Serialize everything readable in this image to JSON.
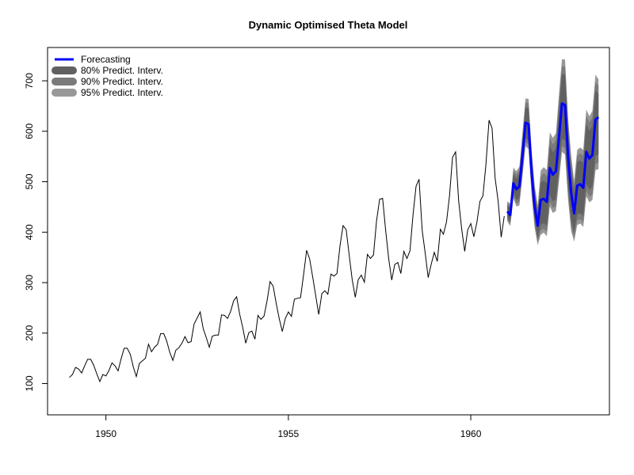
{
  "chart_data": {
    "type": "line",
    "title": "Dynamic Optimised Theta Model",
    "xlabel": "",
    "ylabel": "",
    "xlim": [
      1948.4,
      1963.8
    ],
    "ylim": [
      38,
      766
    ],
    "x_ticks": [
      1950,
      1955,
      1960
    ],
    "y_ticks": [
      100,
      200,
      300,
      400,
      500,
      600,
      700
    ],
    "grid": false,
    "legend_position": "top-left",
    "legend": [
      {
        "label": "Forecasting",
        "kind": "line",
        "color": "#0000ff"
      },
      {
        "label": "80% Predict. Interv.",
        "kind": "band",
        "color": "#616161"
      },
      {
        "label": "90% Predict. Interv.",
        "kind": "band",
        "color": "#7b7b7b"
      },
      {
        "label": "95% Predict. Interv.",
        "kind": "band",
        "color": "#989898"
      }
    ],
    "colors": {
      "history": "#000000",
      "forecast": "#0000ff",
      "band80": "#616161",
      "band90": "#7b7b7b",
      "band95": "#989898"
    },
    "series": [
      {
        "name": "history",
        "start": 1949.0,
        "frequency": 12,
        "values": [
          112,
          118,
          132,
          129,
          121,
          135,
          148,
          148,
          136,
          119,
          104,
          118,
          115,
          126,
          141,
          135,
          125,
          149,
          170,
          170,
          158,
          133,
          114,
          140,
          145,
          150,
          178,
          163,
          172,
          178,
          199,
          199,
          184,
          162,
          146,
          166,
          171,
          180,
          193,
          181,
          183,
          218,
          230,
          242,
          209,
          191,
          172,
          194,
          196,
          196,
          236,
          235,
          229,
          243,
          264,
          272,
          237,
          211,
          180,
          201,
          204,
          188,
          235,
          227,
          234,
          264,
          302,
          293,
          259,
          229,
          203,
          229,
          242,
          233,
          267,
          269,
          270,
          315,
          364,
          347,
          312,
          274,
          237,
          278,
          284,
          277,
          317,
          313,
          318,
          374,
          413,
          405,
          355,
          306,
          271,
          306,
          315,
          301,
          356,
          348,
          355,
          422,
          465,
          467,
          404,
          347,
          305,
          336,
          340,
          318,
          362,
          348,
          363,
          435,
          491,
          505,
          404,
          359,
          310,
          337,
          360,
          342,
          406,
          396,
          420,
          472,
          548,
          559,
          463,
          407,
          362,
          405,
          417,
          391,
          419,
          461,
          472,
          535,
          622,
          606,
          508,
          461,
          390,
          432
        ]
      },
      {
        "name": "Forecasting",
        "start": 1961.0,
        "frequency": 12,
        "values": [
          441,
          434,
          497,
          485,
          491,
          553,
          617,
          614,
          518,
          451,
          413,
          464,
          466,
          460,
          527,
          514,
          521,
          587,
          655,
          652,
          550,
          478,
          437,
          492,
          495,
          488,
          559,
          546,
          553,
          623,
          628
        ]
      },
      {
        "name": "95% Predict. Interv.",
        "start": 1961.0,
        "frequency": 12,
        "lower": [
          422,
          412,
          467,
          451,
          453,
          510,
          570,
          565,
          473,
          409,
          374,
          395,
          399,
          392,
          451,
          438,
          442,
          500,
          559,
          554,
          465,
          402,
          381,
          414,
          417,
          410,
          471,
          459,
          464,
          523,
          525
        ],
        "upper": [
          461,
          457,
          528,
          521,
          530,
          598,
          665,
          664,
          564,
          494,
          453,
          522,
          529,
          523,
          598,
          587,
          596,
          672,
          743,
          742,
          628,
          552,
          502,
          563,
          568,
          563,
          643,
          630,
          640,
          712,
          703
        ]
      },
      {
        "name": "90% Predict. Interv.",
        "start": 1961.0,
        "frequency": 12,
        "lower": [
          425,
          416,
          472,
          457,
          460,
          517,
          578,
          573,
          480,
          416,
          381,
          403,
          407,
          401,
          461,
          448,
          452,
          511,
          571,
          566,
          475,
          411,
          389,
          423,
          426,
          419,
          482,
          470,
          475,
          535,
          538
        ],
        "upper": [
          457,
          452,
          522,
          514,
          523,
          590,
          657,
          656,
          557,
          487,
          446,
          510,
          517,
          511,
          586,
          574,
          583,
          659,
          729,
          728,
          616,
          540,
          491,
          551,
          556,
          551,
          630,
          618,
          627,
          697,
          690
        ]
      },
      {
        "name": "80% Predict. Interv.",
        "start": 1961.0,
        "frequency": 12,
        "lower": [
          429,
          421,
          478,
          464,
          467,
          525,
          586,
          581,
          488,
          423,
          388,
          415,
          418,
          413,
          474,
          461,
          466,
          526,
          586,
          581,
          488,
          424,
          399,
          435,
          438,
          432,
          496,
          484,
          490,
          551,
          555
        ],
        "upper": [
          453,
          447,
          515,
          506,
          515,
          580,
          647,
          646,
          548,
          479,
          438,
          498,
          503,
          497,
          571,
          558,
          567,
          642,
          713,
          712,
          602,
          526,
          478,
          539,
          542,
          537,
          614,
          601,
          610,
          681,
          674
        ]
      }
    ]
  }
}
